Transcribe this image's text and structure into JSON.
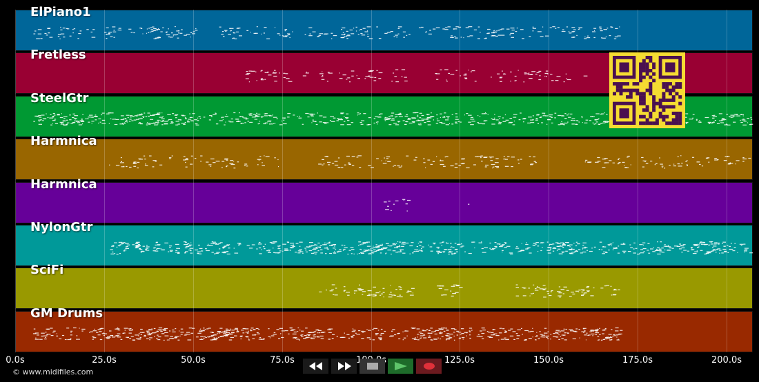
{
  "tracks": [
    {
      "name": "ElPiano1",
      "color": "#006699"
    },
    {
      "name": "Fretless",
      "color": "#990033"
    },
    {
      "name": "SteelGtr",
      "color": "#009933"
    },
    {
      "name": "Harmnica",
      "color": "#996600"
    },
    {
      "name": "Harmnica",
      "color": "#660099"
    },
    {
      "name": "NylonGtr",
      "color": "#009999"
    },
    {
      "name": "SciFi",
      "color": "#999900"
    },
    {
      "name": "GM Drums",
      "color": "#992900"
    }
  ],
  "timeline": {
    "ticks": [
      "0.0s",
      "25.0s",
      "50.0s",
      "75.0s",
      "100.0s",
      "125.0s",
      "150.0s",
      "175.0s",
      "200.0s"
    ],
    "max_seconds": 207
  },
  "transport": {
    "rewind_icon": "rewind-icon",
    "fast_forward_icon": "fast-forward-icon",
    "stop_icon": "stop-icon",
    "play_icon": "play-icon",
    "record_icon": "record-icon",
    "play_color": "#4caf50",
    "record_color": "#c0282d"
  },
  "footer": {
    "copyright": "© www.midifiles.com"
  },
  "qr_code": {
    "icon": "qr-code-icon",
    "color": "#f5dc32",
    "dark": "#4a1050"
  }
}
